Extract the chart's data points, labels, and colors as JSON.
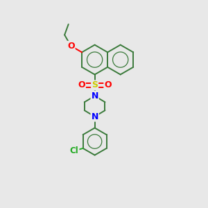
{
  "background_color": "#e8e8e8",
  "bond_color": "#3a7a3a",
  "atom_colors": {
    "O": "#ff0000",
    "N": "#0000ff",
    "S": "#cccc00",
    "Cl": "#22aa22",
    "C": "#3a7a3a"
  },
  "figsize": [
    3.0,
    3.0
  ],
  "dpi": 100,
  "lw": 1.4,
  "lw_thin": 0.9
}
